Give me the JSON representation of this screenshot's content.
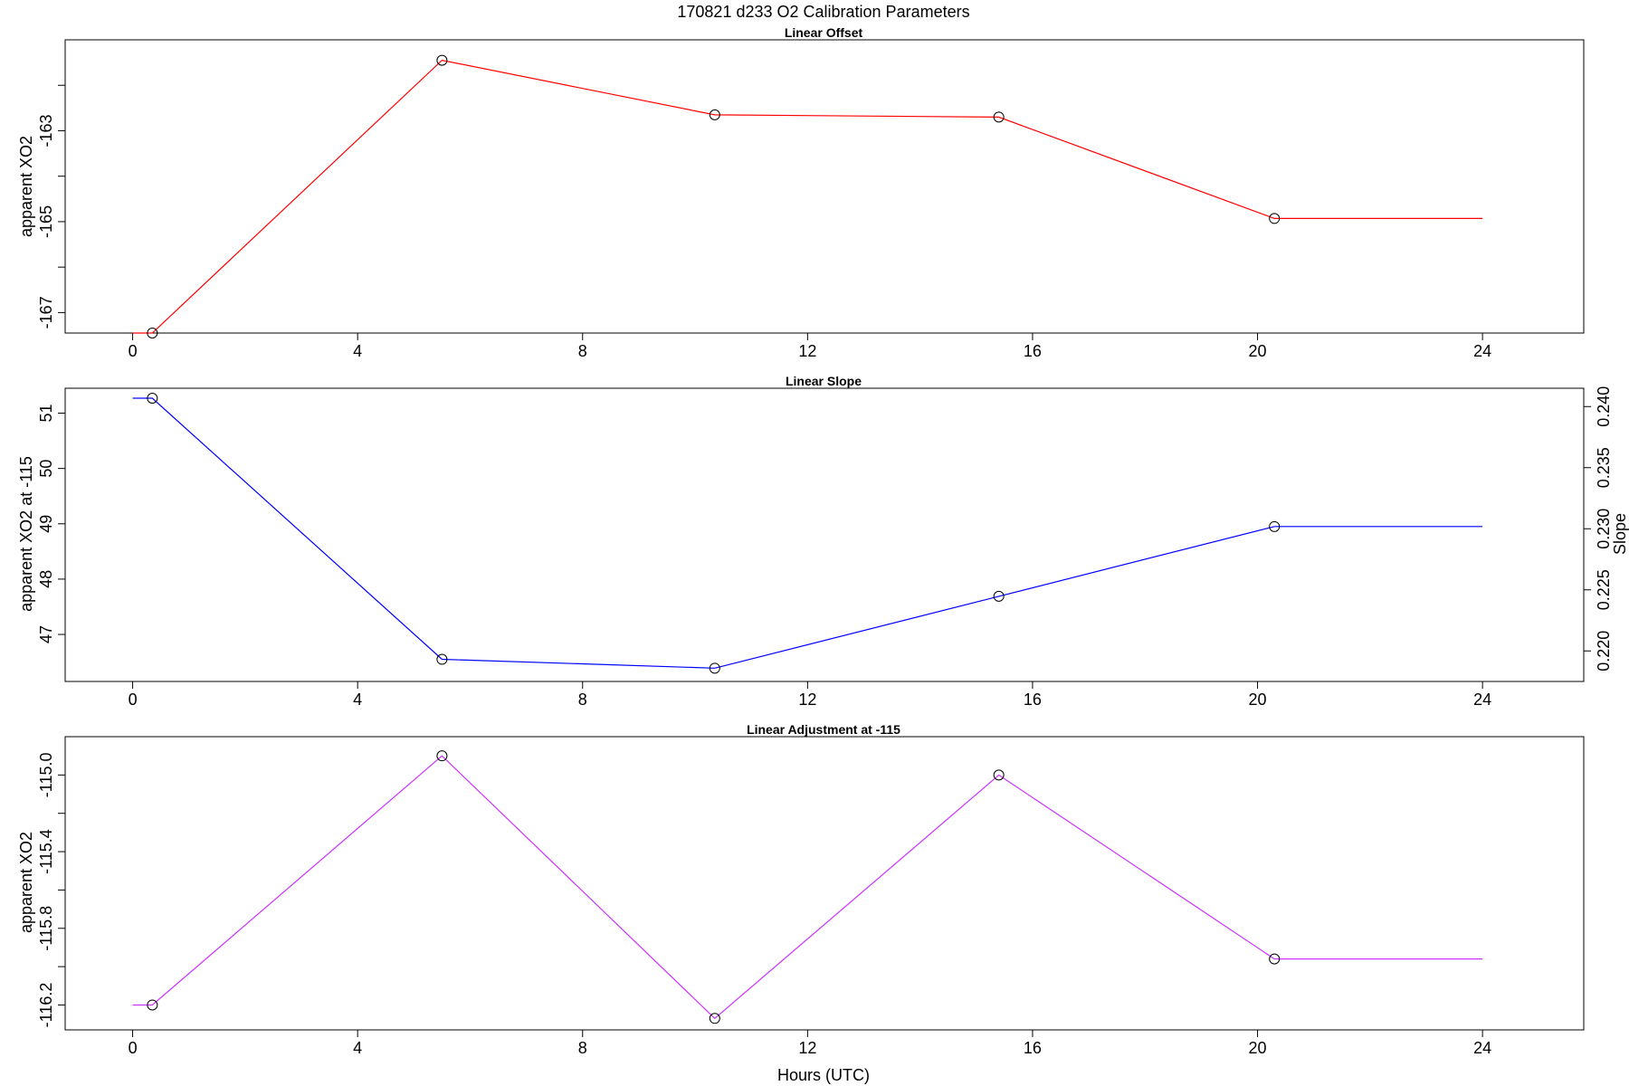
{
  "figure": {
    "title": "170821   d233   O2 Calibration Parameters",
    "xlabel": "Hours (UTC)"
  },
  "chart_data": [
    {
      "type": "line",
      "title": "Linear Offset",
      "xlabel": "",
      "ylabel": "apparent XO2",
      "xlim": [
        -1.2,
        25.8
      ],
      "ylim": [
        -167.45,
        -161.0
      ],
      "xticks": [
        0,
        4,
        8,
        12,
        16,
        20,
        24
      ],
      "yticks_labeled": [
        -167,
        -165,
        -163
      ],
      "yticks_minor": [
        -166,
        -164,
        -162
      ],
      "grid": false,
      "color": "#ff0000",
      "line_x": [
        0.0,
        0.35,
        5.5,
        10.35,
        15.4,
        20.3,
        24.0
      ],
      "line_y": [
        -167.45,
        -167.45,
        -161.45,
        -162.65,
        -162.7,
        -164.93,
        -164.93
      ],
      "points_x": [
        0.35,
        5.5,
        10.35,
        15.4,
        20.3
      ],
      "points_y": [
        -167.45,
        -161.45,
        -162.65,
        -162.7,
        -164.93
      ]
    },
    {
      "type": "line",
      "title": "Linear Slope",
      "xlabel": "",
      "ylabel": "apparent XO2 at -115",
      "ylabel_right": "Slope",
      "xlim": [
        -1.2,
        25.8
      ],
      "ylim": [
        46.15,
        51.45
      ],
      "y2lim": [
        0.2175,
        0.2415
      ],
      "xticks": [
        0,
        4,
        8,
        12,
        16,
        20,
        24
      ],
      "yticks_labeled": [
        47,
        48,
        49,
        50,
        51
      ],
      "y2ticks_labeled": [
        "0.220",
        "0.225",
        "0.230",
        "0.235",
        "0.240"
      ],
      "grid": false,
      "color": "#0000ff",
      "line_x": [
        0.0,
        0.35,
        5.5,
        10.35,
        15.4,
        20.3,
        24.0
      ],
      "line_y": [
        51.27,
        51.27,
        46.55,
        46.39,
        47.69,
        48.95,
        48.95
      ],
      "points_x": [
        0.35,
        5.5,
        10.35,
        15.4,
        20.3
      ],
      "points_y": [
        51.27,
        46.55,
        46.39,
        47.69,
        48.95
      ]
    },
    {
      "type": "line",
      "title": "Linear Adjustment at -115",
      "xlabel": "Hours (UTC)",
      "ylabel": "apparent XO2",
      "xlim": [
        -1.2,
        25.8
      ],
      "ylim": [
        -116.33,
        -114.8
      ],
      "xticks": [
        0,
        4,
        8,
        12,
        16,
        20,
        24
      ],
      "yticks_labeled": [
        "-116.2",
        "-115.8",
        "-115.4",
        "-115.0"
      ],
      "yticks_minor": [
        "-116.0",
        "-115.6",
        "-115.2"
      ],
      "grid": false,
      "color": "#cc33ff",
      "line_x": [
        0.0,
        0.35,
        5.5,
        10.35,
        15.4,
        20.3,
        24.0
      ],
      "line_y": [
        -116.2,
        -116.2,
        -114.9,
        -116.27,
        -115.0,
        -115.96,
        -115.96
      ],
      "points_x": [
        0.35,
        5.5,
        10.35,
        15.4,
        20.3
      ],
      "points_y": [
        -116.2,
        -114.9,
        -116.27,
        -115.0,
        -115.96
      ]
    }
  ]
}
